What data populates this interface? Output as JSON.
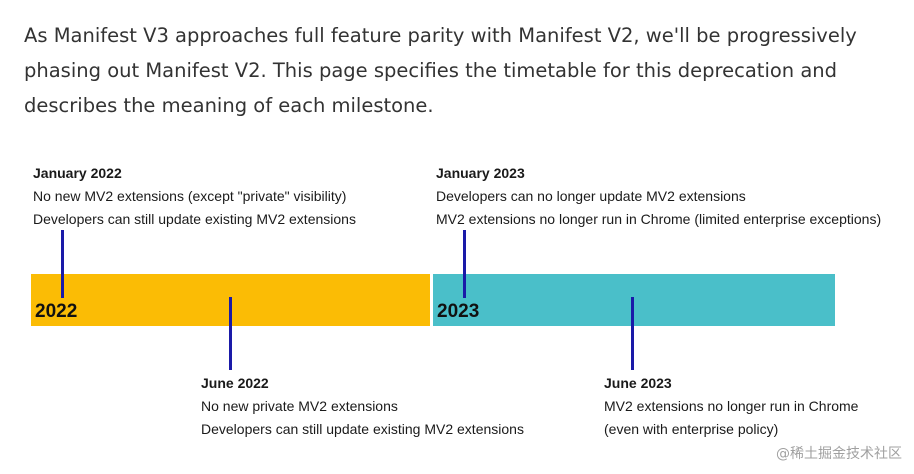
{
  "intro": {
    "paragraph": "As Manifest V3 approaches full feature parity with Manifest V2, we'll be progressively phasing out Manifest V2. This page specifies the timetable for this deprecation and describes the meaning of each milestone."
  },
  "timeline": {
    "years": [
      {
        "label": "2022",
        "color": "#fbbc05"
      },
      {
        "label": "2023",
        "color": "#4abfc9"
      }
    ],
    "milestones": [
      {
        "title": "January 2022",
        "lines": [
          "No new MV2 extensions (except \"private\" visibility)",
          "Developers can still update existing MV2 extensions"
        ]
      },
      {
        "title": "June 2022",
        "lines": [
          "No new private MV2 extensions",
          "Developers can still update existing MV2 extensions"
        ]
      },
      {
        "title": "January 2023",
        "lines": [
          "Developers can no longer update MV2 extensions",
          "MV2 extensions no longer run in Chrome (limited enterprise exceptions)"
        ]
      },
      {
        "title": "June 2023",
        "lines": [
          "MV2 extensions no longer run in Chrome",
          "(even with enterprise policy)"
        ]
      }
    ],
    "marker_color": "#1a1aa8"
  },
  "watermark": {
    "text": "@稀土掘金技术社区"
  }
}
